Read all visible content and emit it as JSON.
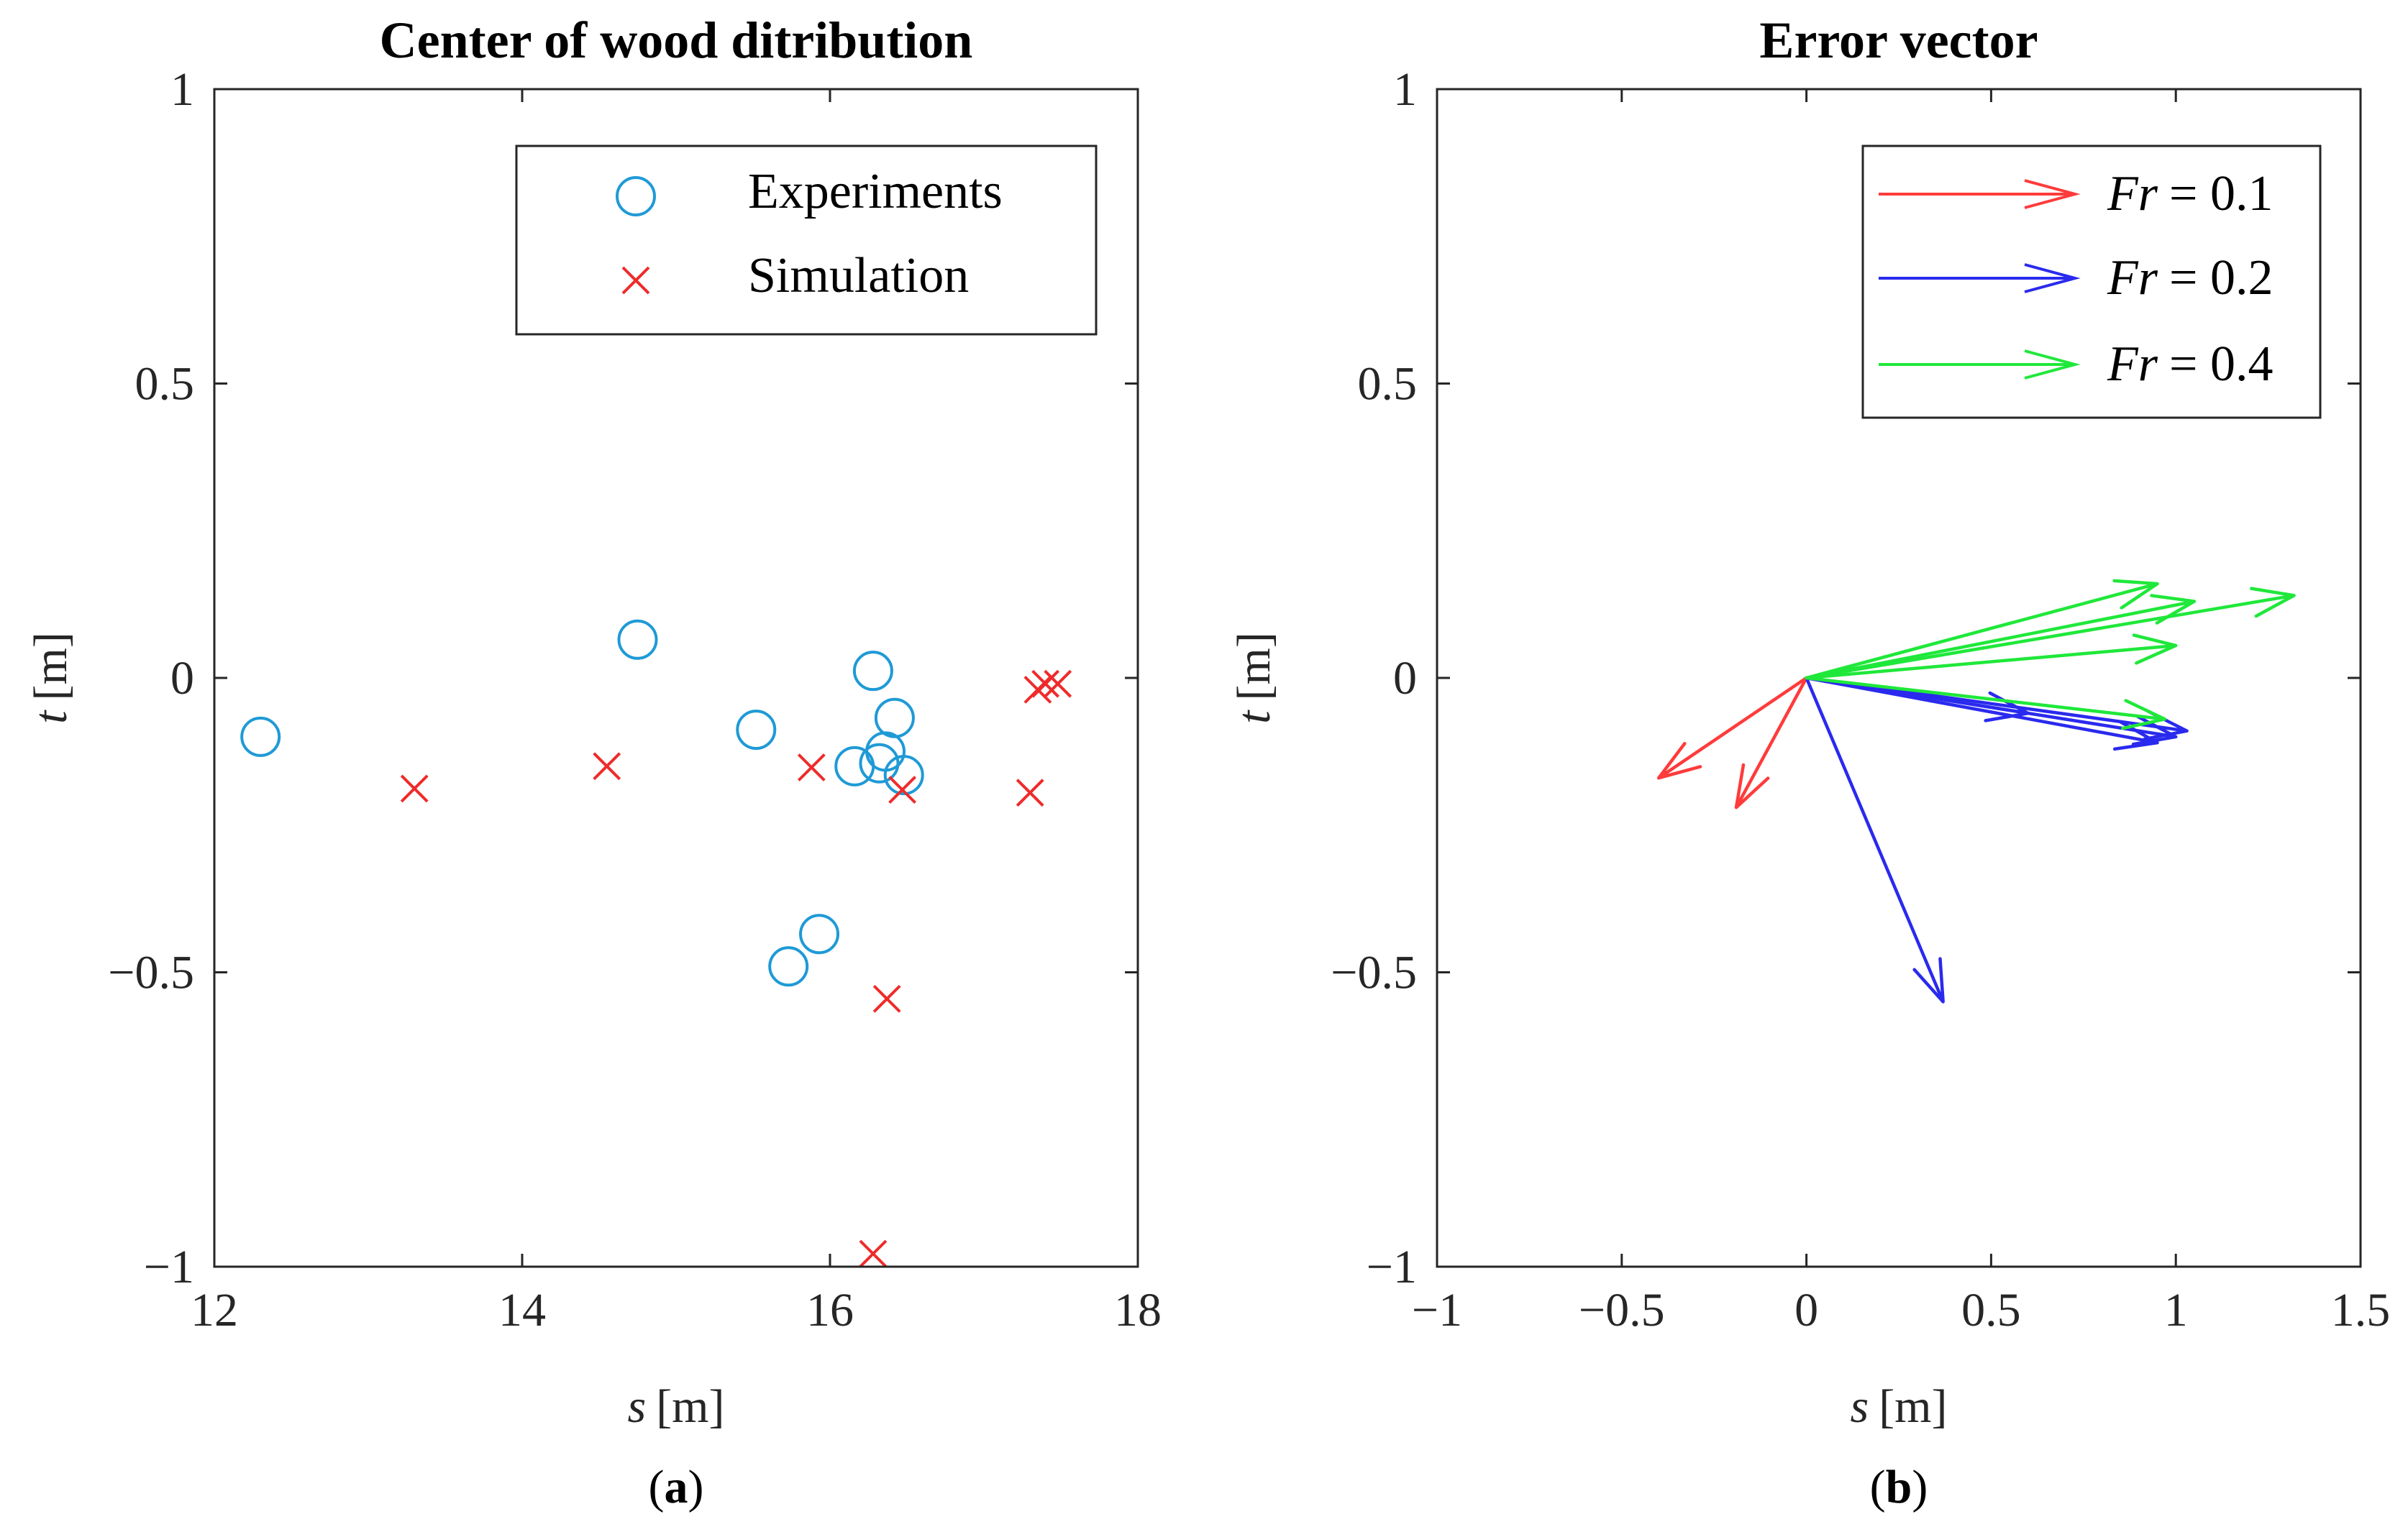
{
  "figure": {
    "panel_a_label": "a",
    "panel_b_label": "b"
  },
  "chart_data": [
    {
      "type": "scatter",
      "title": "Center of wood ditribution",
      "xlabel_var": "s",
      "xlabel_unit": "[m]",
      "ylabel_var": "t",
      "ylabel_unit": "[m]",
      "xlim": [
        12,
        18
      ],
      "ylim": [
        -1,
        1
      ],
      "xticks": [
        12,
        14,
        16,
        18
      ],
      "xtick_labels": [
        "12",
        "14",
        "16",
        "18"
      ],
      "yticks": [
        -1,
        -0.5,
        0,
        0.5,
        1
      ],
      "ytick_labels": [
        "−1",
        "−0.5",
        "0",
        "0.5",
        "1"
      ],
      "legend_position": "top-right",
      "series": [
        {
          "name": "Experiments",
          "marker": "circle",
          "color": "#1f9ad6",
          "points": [
            [
              12.3,
              -0.1
            ],
            [
              14.75,
              0.065
            ],
            [
              15.52,
              -0.088
            ],
            [
              15.73,
              -0.49
            ],
            [
              15.93,
              -0.435
            ],
            [
              16.16,
              -0.15
            ],
            [
              16.28,
              0.012
            ],
            [
              16.32,
              -0.145
            ],
            [
              16.36,
              -0.125
            ],
            [
              16.42,
              -0.068
            ],
            [
              16.48,
              -0.165
            ]
          ]
        },
        {
          "name": "Simulation",
          "marker": "x",
          "color": "#ee2b2b",
          "points": [
            [
              13.3,
              -0.188
            ],
            [
              14.55,
              -0.15
            ],
            [
              15.88,
              -0.152
            ],
            [
              16.28,
              -0.978
            ],
            [
              16.37,
              -0.545
            ],
            [
              16.47,
              -0.19
            ],
            [
              17.3,
              -0.195
            ],
            [
              17.35,
              -0.02
            ],
            [
              17.4,
              -0.01
            ],
            [
              17.48,
              -0.01
            ]
          ]
        }
      ]
    },
    {
      "type": "quiver",
      "title": "Error vector",
      "xlabel_var": "s",
      "xlabel_unit": "[m]",
      "ylabel_var": "t",
      "ylabel_unit": "[m]",
      "xlim": [
        -1,
        1.5
      ],
      "ylim": [
        -1,
        1
      ],
      "xticks": [
        -1,
        -0.5,
        0,
        0.5,
        1,
        1.5
      ],
      "xtick_labels": [
        "−1",
        "−0.5",
        "0",
        "0.5",
        "1",
        "1.5"
      ],
      "yticks": [
        -1,
        -0.5,
        0,
        0.5,
        1
      ],
      "ytick_labels": [
        "−1",
        "−0.5",
        "0",
        "0.5",
        "1"
      ],
      "legend_position": "top-right",
      "series": [
        {
          "name_var": "Fr",
          "name_value": "= 0.1",
          "color": "#ff3b3b",
          "origin": [
            0,
            0
          ],
          "vectors": [
            [
              -0.4,
              -0.17
            ],
            [
              -0.19,
              -0.22
            ]
          ]
        },
        {
          "name_var": "Fr",
          "name_value": "= 0.2",
          "color": "#2a2aee",
          "origin": [
            0,
            0
          ],
          "vectors": [
            [
              0.37,
              -0.55
            ],
            [
              0.6,
              -0.06
            ],
            [
              0.95,
              -0.11
            ],
            [
              1.0,
              -0.1
            ],
            [
              1.03,
              -0.09
            ]
          ]
        },
        {
          "name_var": "Fr",
          "name_value": "= 0.4",
          "color": "#1fe83a",
          "origin": [
            0,
            0
          ],
          "vectors": [
            [
              0.95,
              0.16
            ],
            [
              1.05,
              0.13
            ],
            [
              1.32,
              0.14
            ],
            [
              1.0,
              0.055
            ],
            [
              0.97,
              -0.07
            ]
          ]
        }
      ]
    }
  ]
}
